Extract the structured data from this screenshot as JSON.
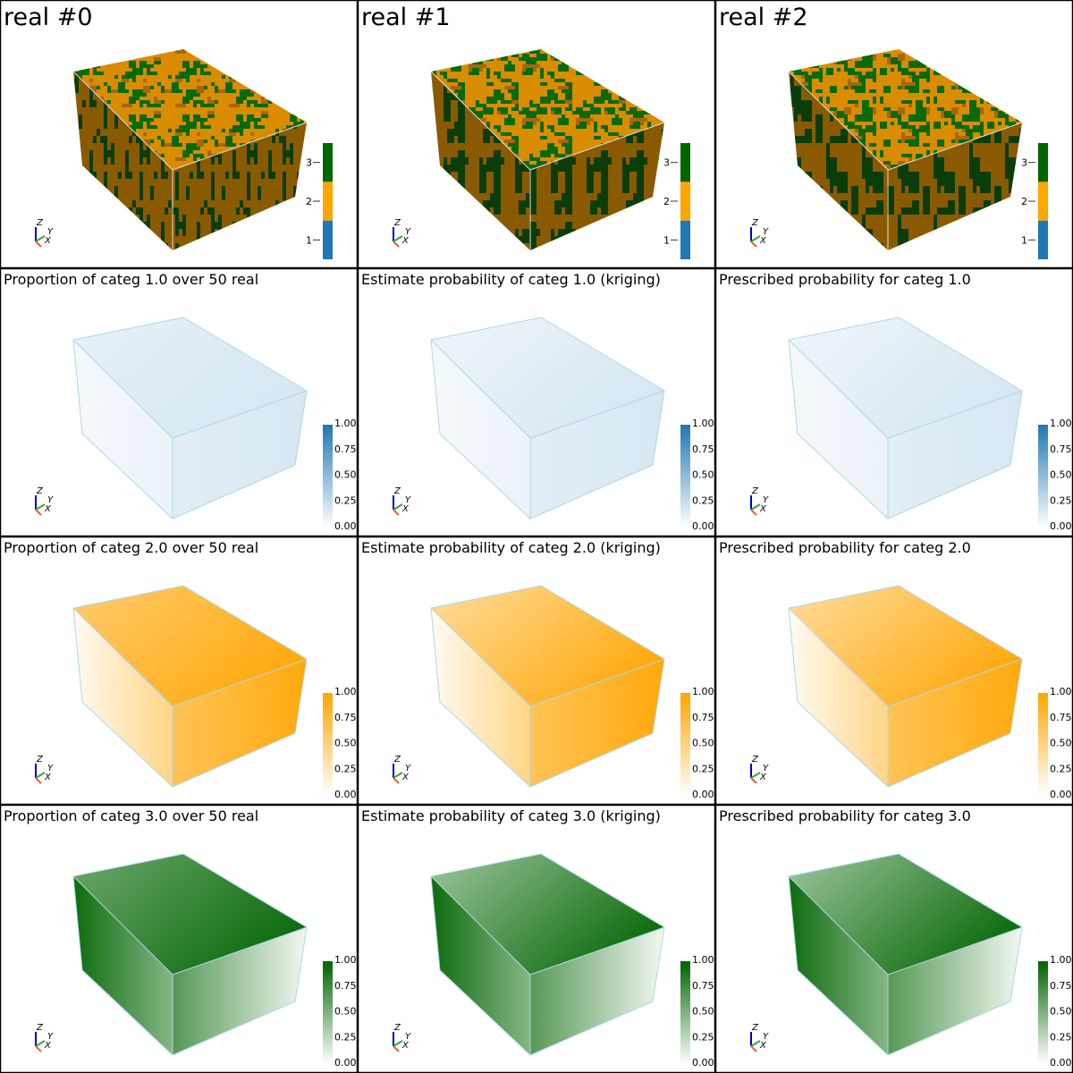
{
  "panels": [
    {
      "title": "real #0",
      "colorbar": [
        "1",
        "2",
        "3"
      ]
    },
    {
      "title": "real #1",
      "colorbar": [
        "1",
        "2",
        "3"
      ]
    },
    {
      "title": "real #2",
      "colorbar": [
        "1",
        "2",
        "3"
      ]
    },
    {
      "title": "Proportion of categ 1.0 over 50 real",
      "colorbar": [
        "0.00",
        "0.250",
        "0.500",
        "0.750",
        "1.00"
      ]
    },
    {
      "title": "Estimate probability of categ 1.0 (kriging)",
      "colorbar": [
        "0.00",
        "0.250",
        "0.500",
        "0.750",
        "1.00"
      ]
    },
    {
      "title": "Prescribed probability for categ 1.0",
      "colorbar": [
        "0.00",
        "0.250",
        "0.500",
        "0.750",
        "1.00"
      ]
    },
    {
      "title": "Proportion of categ 2.0 over 50 real",
      "colorbar": [
        "0.00",
        "0.250",
        "0.500",
        "0.750",
        "1.00"
      ]
    },
    {
      "title": "Estimate probability of categ 2.0 (kriging)",
      "colorbar": [
        "0.00",
        "0.250",
        "0.500",
        "0.750",
        "1.00"
      ]
    },
    {
      "title": "Prescribed probability for categ 2.0",
      "colorbar": [
        "0.00",
        "0.250",
        "0.500",
        "0.750",
        "1.00"
      ]
    },
    {
      "title": "Proportion of categ 3.0 over 50 real",
      "colorbar": [
        "0.00",
        "0.250",
        "0.500",
        "0.750",
        "1.00"
      ]
    },
    {
      "title": "Estimate probability of categ 3.0 (kriging)",
      "colorbar": [
        "0.00",
        "0.250",
        "0.500",
        "0.750",
        "1.00"
      ]
    },
    {
      "title": "Prescribed probability for categ 3.0",
      "colorbar": [
        "0.00",
        "0.250",
        "0.500",
        "0.750",
        "1.00"
      ]
    }
  ],
  "axes_labels": [
    "Z",
    "Y",
    "X"
  ]
}
